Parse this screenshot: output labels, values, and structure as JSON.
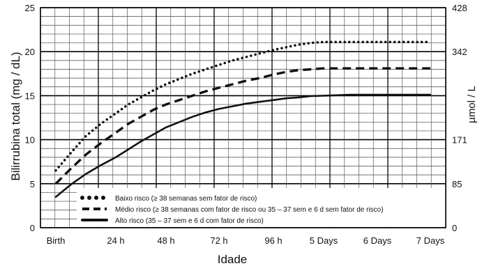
{
  "chart_data": {
    "type": "line",
    "xlabel": "Idade",
    "ylabel": "Bilirrubina total (mg / dL)",
    "y2label": "µmol / L",
    "x_categories": [
      "Birth",
      "24 h",
      "48 h",
      "72 h",
      "96 h",
      "5 Days",
      "6 Days",
      "7 Days"
    ],
    "ylim": [
      0,
      25
    ],
    "y_ticks": [
      0,
      5,
      10,
      15,
      20,
      25
    ],
    "y2_ticks": [
      {
        "label": "0",
        "at": 0
      },
      {
        "label": "85",
        "at": 5
      },
      {
        "label": "171",
        "at": 10
      },
      {
        "label": "342",
        "at": 20
      },
      {
        "label": "428",
        "at": 25
      }
    ],
    "grid": true,
    "legend_position": "bottom",
    "series": [
      {
        "name": "Baixo risco (≥ 38 semanas sem fator de risco)",
        "style": "dotted",
        "x": [
          0,
          0.25,
          0.5,
          0.75,
          1,
          1.25,
          1.5,
          1.75,
          2,
          2.25,
          2.5,
          2.75,
          3,
          3.25,
          3.5,
          3.75,
          4,
          4.25,
          4.5,
          4.75,
          5,
          5.5,
          6,
          6.5,
          7
        ],
        "y": [
          6.5,
          8.5,
          10.4,
          11.8,
          13.0,
          14.0,
          14.8,
          15.6,
          16.3,
          16.9,
          17.5,
          18.0,
          18.5,
          19.0,
          19.4,
          19.8,
          20.2,
          20.5,
          20.8,
          21.0,
          21.1,
          21.1,
          21.1,
          21.1,
          21.1
        ]
      },
      {
        "name": "Médio risco (≥ 38 semanas com fator de risco ou 35 – 37 sem e 6 d sem fator de risco)",
        "style": "dashed",
        "x": [
          0,
          0.25,
          0.5,
          0.75,
          1,
          1.25,
          1.5,
          1.75,
          2,
          2.25,
          2.5,
          2.75,
          3,
          3.25,
          3.5,
          3.75,
          4,
          4.25,
          4.5,
          4.75,
          5,
          5.5,
          6,
          6.5,
          7
        ],
        "y": [
          5.0,
          6.7,
          8.3,
          9.6,
          10.8,
          11.8,
          12.6,
          13.4,
          14.0,
          14.5,
          15.0,
          15.5,
          15.9,
          16.3,
          16.7,
          17.0,
          17.4,
          17.7,
          17.9,
          18.0,
          18.1,
          18.1,
          18.1,
          18.1,
          18.1
        ]
      },
      {
        "name": "Alto risco (35 – 37 sem e 6 d com fator de risco)",
        "style": "solid",
        "x": [
          0,
          0.25,
          0.5,
          0.75,
          1,
          1.25,
          1.5,
          1.75,
          2,
          2.25,
          2.5,
          2.75,
          3,
          3.25,
          3.5,
          3.75,
          4,
          4.25,
          4.5,
          4.75,
          5,
          5.5,
          6,
          6.5,
          7
        ],
        "y": [
          3.5,
          4.9,
          6.1,
          7.1,
          8.0,
          8.9,
          9.8,
          10.6,
          11.4,
          12.0,
          12.6,
          13.1,
          13.5,
          13.8,
          14.1,
          14.3,
          14.5,
          14.7,
          14.8,
          14.95,
          15.0,
          15.1,
          15.1,
          15.1,
          15.1
        ]
      }
    ]
  }
}
